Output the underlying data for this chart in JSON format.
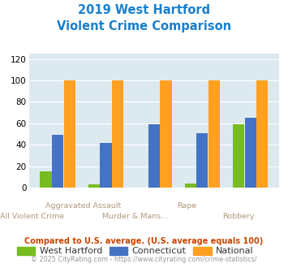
{
  "title_line1": "2019 West Hartford",
  "title_line2": "Violent Crime Comparison",
  "categories_top": [
    "",
    "Aggravated Assault",
    "",
    "Rape",
    ""
  ],
  "categories_bottom": [
    "All Violent Crime",
    "",
    "Murder & Mans...",
    "",
    "Robbery"
  ],
  "west_hartford": [
    15,
    3,
    0,
    4,
    59
  ],
  "connecticut": [
    49,
    42,
    59,
    51,
    65
  ],
  "national": [
    100,
    100,
    100,
    100,
    100
  ],
  "colors": {
    "west_hartford": "#77bc21",
    "connecticut": "#4472c4",
    "national": "#ffa020"
  },
  "ylim": [
    0,
    125
  ],
  "yticks": [
    0,
    20,
    40,
    60,
    80,
    100,
    120
  ],
  "background_color": "#dce9f0",
  "title_color": "#1a7fcc",
  "label_color": "#b0997a",
  "footnote1": "Compared to U.S. average. (U.S. average equals 100)",
  "footnote2": "© 2025 CityRating.com - https://www.cityrating.com/crime-statistics/",
  "footnote1_color": "#cc4400",
  "footnote2_color": "#999999",
  "legend_labels": [
    "West Hartford",
    "Connecticut",
    "National"
  ],
  "legend_text_color": "#333333"
}
